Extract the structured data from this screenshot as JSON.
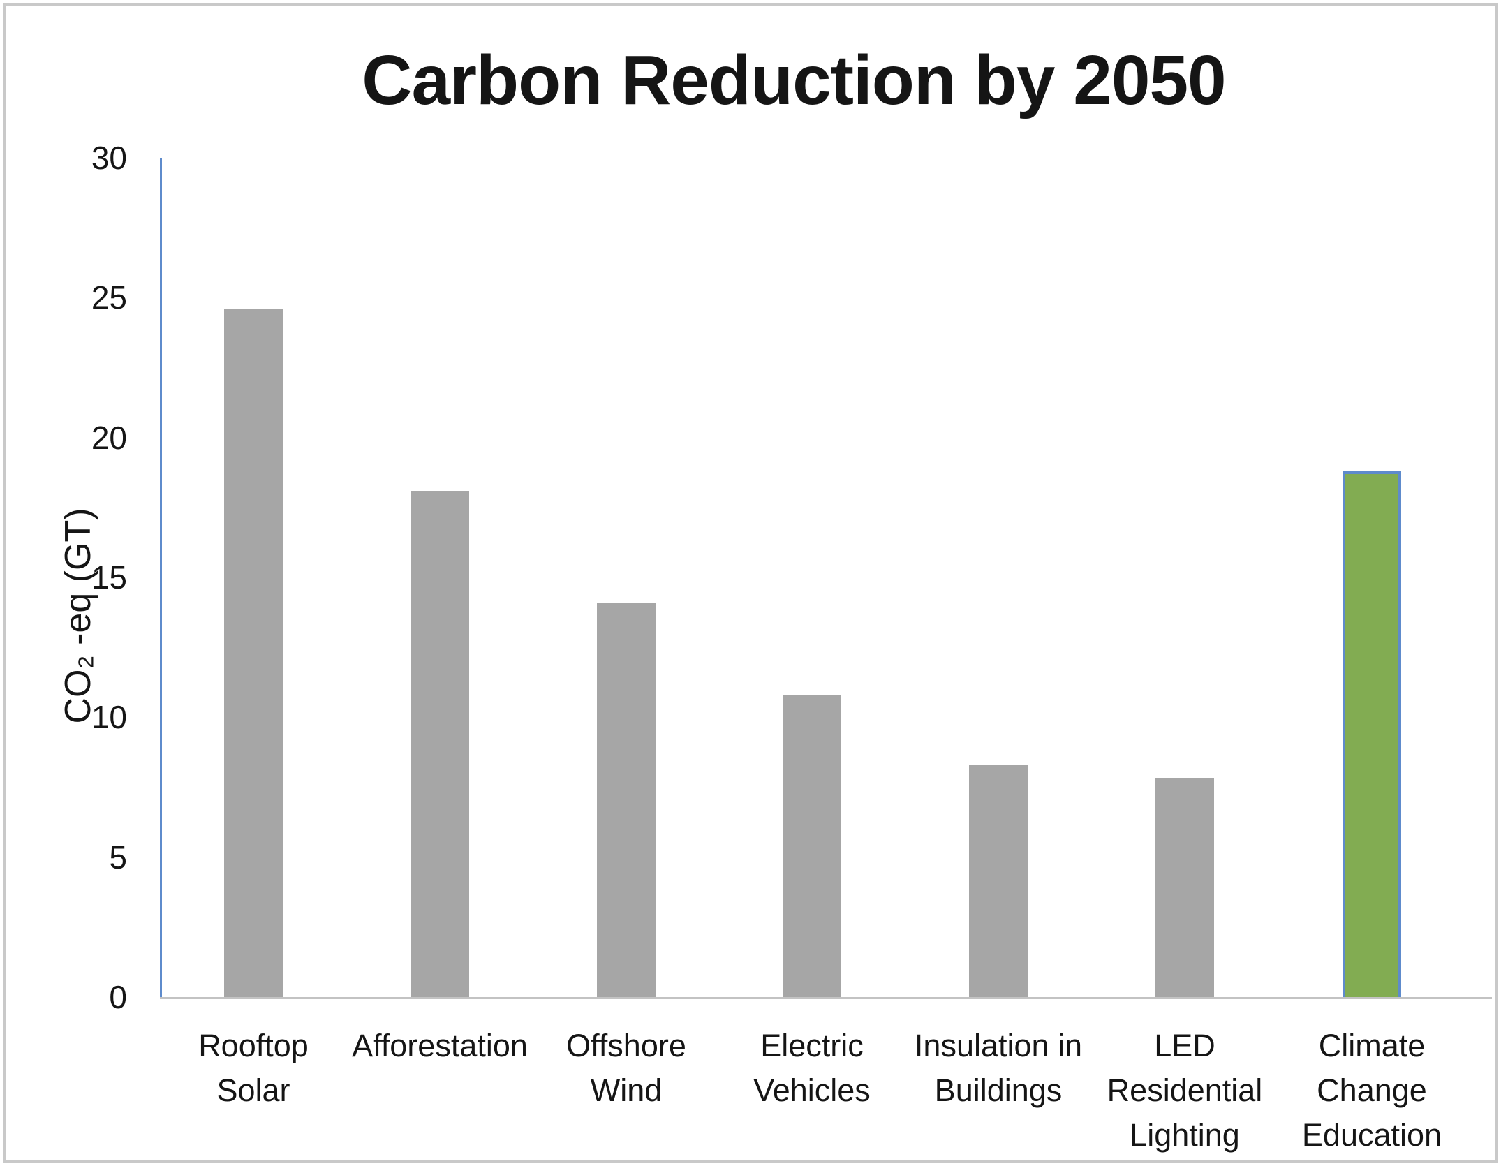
{
  "chart_data": {
    "type": "bar",
    "title": "Carbon Reduction by 2050",
    "xlabel": "",
    "ylabel": "CO₂ -eq (GT)",
    "ylim": [
      0,
      30
    ],
    "yticks": [
      0,
      5,
      10,
      15,
      20,
      25,
      30
    ],
    "grid": false,
    "legend": false,
    "categories": [
      "Rooftop Solar",
      "Afforestation",
      "Offshore Wind",
      "Electric Vehicles",
      "Insulation in Buildings",
      "LED Residential Lighting",
      "Climate Change Education"
    ],
    "categories_display": [
      "Rooftop\nSolar",
      "Afforestation",
      "Offshore\nWind",
      "Electric\nVehicles",
      "Insulation in\nBuildings",
      "LED\nResidential\nLighting",
      "Climate\nChange\nEducation"
    ],
    "values": [
      24.6,
      18.1,
      14.1,
      10.8,
      8.3,
      7.8,
      18.8
    ],
    "highlight_index": 6,
    "highlight_category": "Climate Change Education"
  },
  "colors": {
    "bar": "#a6a6a6",
    "highlight_fill": "#82ac52",
    "highlight_border": "#5e8bcc",
    "y_axis_line": "#5e8bcc",
    "x_axis_line": "#c3c3c3",
    "frame_border": "#c9c9c9",
    "text": "#151515"
  }
}
